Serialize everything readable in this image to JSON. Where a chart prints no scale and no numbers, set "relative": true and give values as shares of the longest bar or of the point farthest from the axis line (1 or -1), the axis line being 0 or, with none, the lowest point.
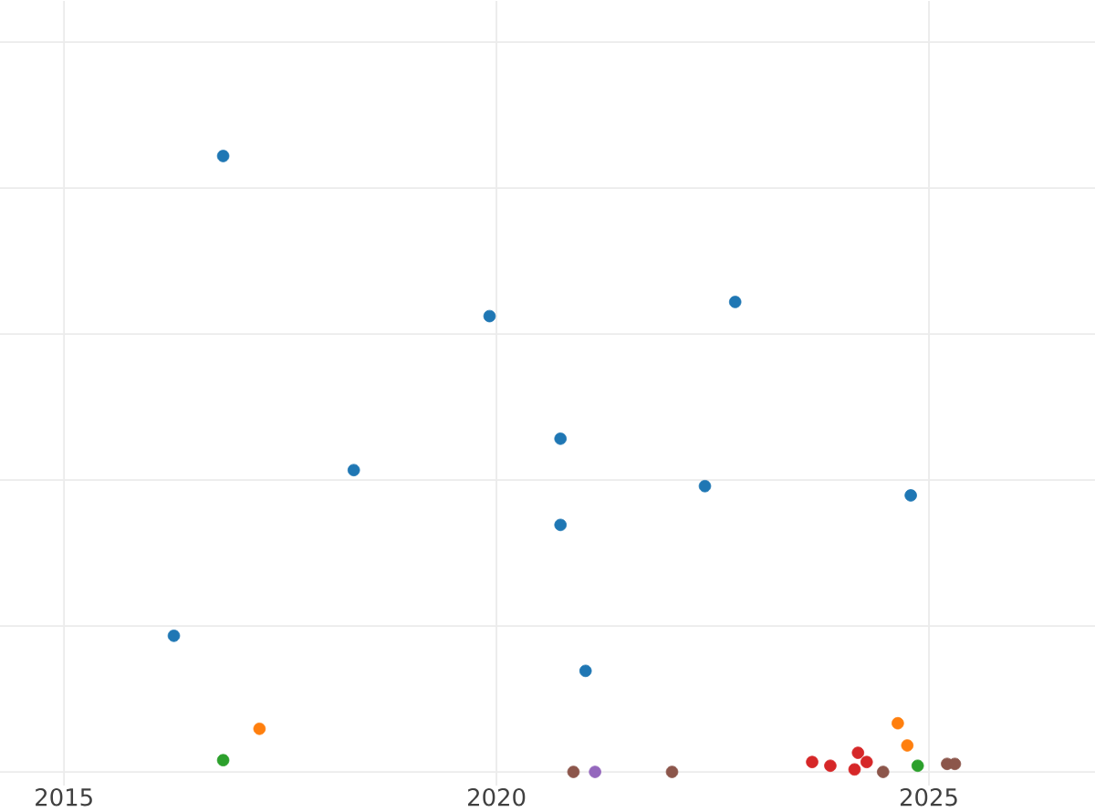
{
  "chart_data": {
    "type": "scatter",
    "relative": true,
    "grid": true,
    "marker": "circle",
    "xlim": [
      2014.26,
      2026.92
    ],
    "xticks": [
      2015,
      2020,
      2025
    ],
    "tick_labels": "x",
    "series": [
      {
        "color": "#1f77b4",
        "x": [
          2016.84,
          2019.92,
          2022.76,
          2018.35,
          2020.74,
          2022.41,
          2024.79,
          2020.74,
          2016.27,
          2021.03
        ],
        "values": [
          1.0,
          0.74,
          0.763,
          0.49,
          0.541,
          0.464,
          0.449,
          0.401,
          0.221,
          0.164
        ]
      },
      {
        "color": "#ff7f0e",
        "x": [
          2017.26,
          2024.64,
          2024.75
        ],
        "values": [
          0.07,
          0.079,
          0.043
        ]
      },
      {
        "color": "#2ca02c",
        "x": [
          2016.84,
          2024.87
        ],
        "values": [
          0.019,
          0.01
        ]
      },
      {
        "color": "#d62728",
        "x": [
          2023.65,
          2023.86,
          2024.18,
          2024.14,
          2024.28
        ],
        "values": [
          0.016,
          0.01,
          0.031,
          0.004,
          0.016
        ]
      },
      {
        "color": "#9467bd",
        "x": [
          2021.14
        ],
        "values": [
          0.0
        ]
      },
      {
        "color": "#8c564b",
        "x": [
          2020.89,
          2022.03,
          2024.47,
          2025.21,
          2025.3
        ],
        "values": [
          0.0,
          0.0,
          0.0,
          0.013,
          0.013
        ]
      }
    ]
  }
}
